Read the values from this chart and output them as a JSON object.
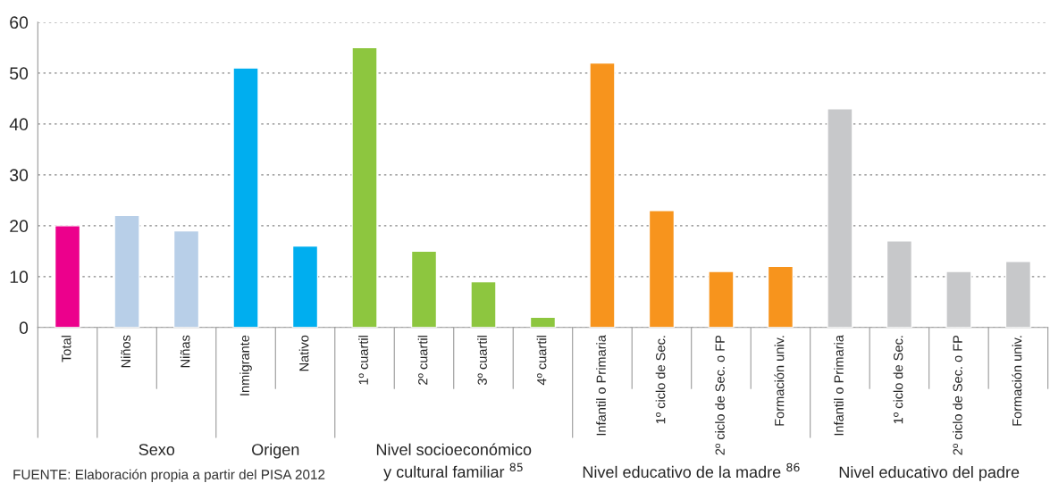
{
  "chart_data": {
    "type": "bar",
    "categories": [
      "Total",
      "Niños",
      "Niñas",
      "Inmigrante",
      "Nativo",
      "1º cuartil",
      "2º cuartil",
      "3º cuartil",
      "4º cuartil",
      "Infantil o Primaria",
      "1º ciclo de Sec.",
      "2º ciclo de Sec. o FP",
      "Formación univ.",
      "Infantil o Primaria",
      "1º ciclo de Sec.",
      "2º ciclo de Sec. o FP",
      "Formación univ."
    ],
    "values": [
      20,
      22,
      19,
      51,
      16,
      55,
      15,
      9,
      2,
      52,
      23,
      11,
      12,
      43,
      17,
      11,
      13
    ],
    "colors": [
      "#ec008c",
      "#b8cfe8",
      "#b8cfe8",
      "#00aeef",
      "#00aeef",
      "#8dc63f",
      "#8dc63f",
      "#8dc63f",
      "#8dc63f",
      "#f7941d",
      "#f7941d",
      "#f7941d",
      "#f7941d",
      "#c7c8ca",
      "#c7c8ca",
      "#c7c8ca",
      "#c7c8ca"
    ],
    "ylim": [
      0,
      60
    ],
    "yticks": [
      0,
      10,
      20,
      30,
      40,
      50,
      60
    ],
    "grid": "y",
    "line_style": "dotted",
    "annotations": [
      "Sexo",
      "Origen",
      "Nivel socioeconómico\ny cultural familiar $^{85}$",
      "Nivel educativo de la madre $^{86}$",
      "Nivel educativo del padre",
      "FUENTE: Elaboración propia a partir del PISA 2012"
    ]
  }
}
